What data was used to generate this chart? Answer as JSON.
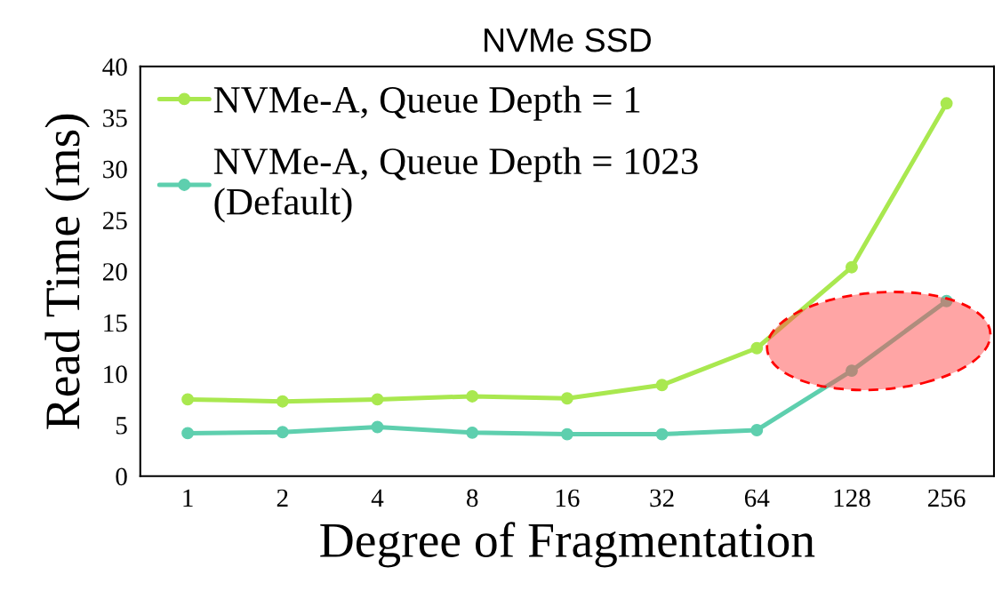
{
  "chart_data": {
    "type": "line",
    "title": "NVMe SSD",
    "xlabel": "Degree of Fragmentation",
    "ylabel": "Read Time (ms)",
    "categories": [
      "1",
      "2",
      "4",
      "8",
      "16",
      "32",
      "64",
      "128",
      "256"
    ],
    "series": [
      {
        "name": "NVMe-A, Queue Depth = 1",
        "color": "#a9e84f",
        "values": [
          7.5,
          7.3,
          7.5,
          7.8,
          7.6,
          8.9,
          12.5,
          20.4,
          36.4
        ]
      },
      {
        "name": "NVMe-A, Queue Depth = 1023\n(Default)",
        "color": "#5ecfae",
        "values": [
          4.2,
          4.3,
          4.8,
          4.25,
          4.1,
          4.1,
          4.5,
          10.3,
          17.1
        ]
      }
    ],
    "ylim": [
      0,
      40
    ],
    "yticks": [
      0,
      5,
      10,
      15,
      20,
      25,
      30,
      35,
      40
    ],
    "grid": false,
    "legend": "top left",
    "marker": "circle",
    "line_style": "solid"
  }
}
